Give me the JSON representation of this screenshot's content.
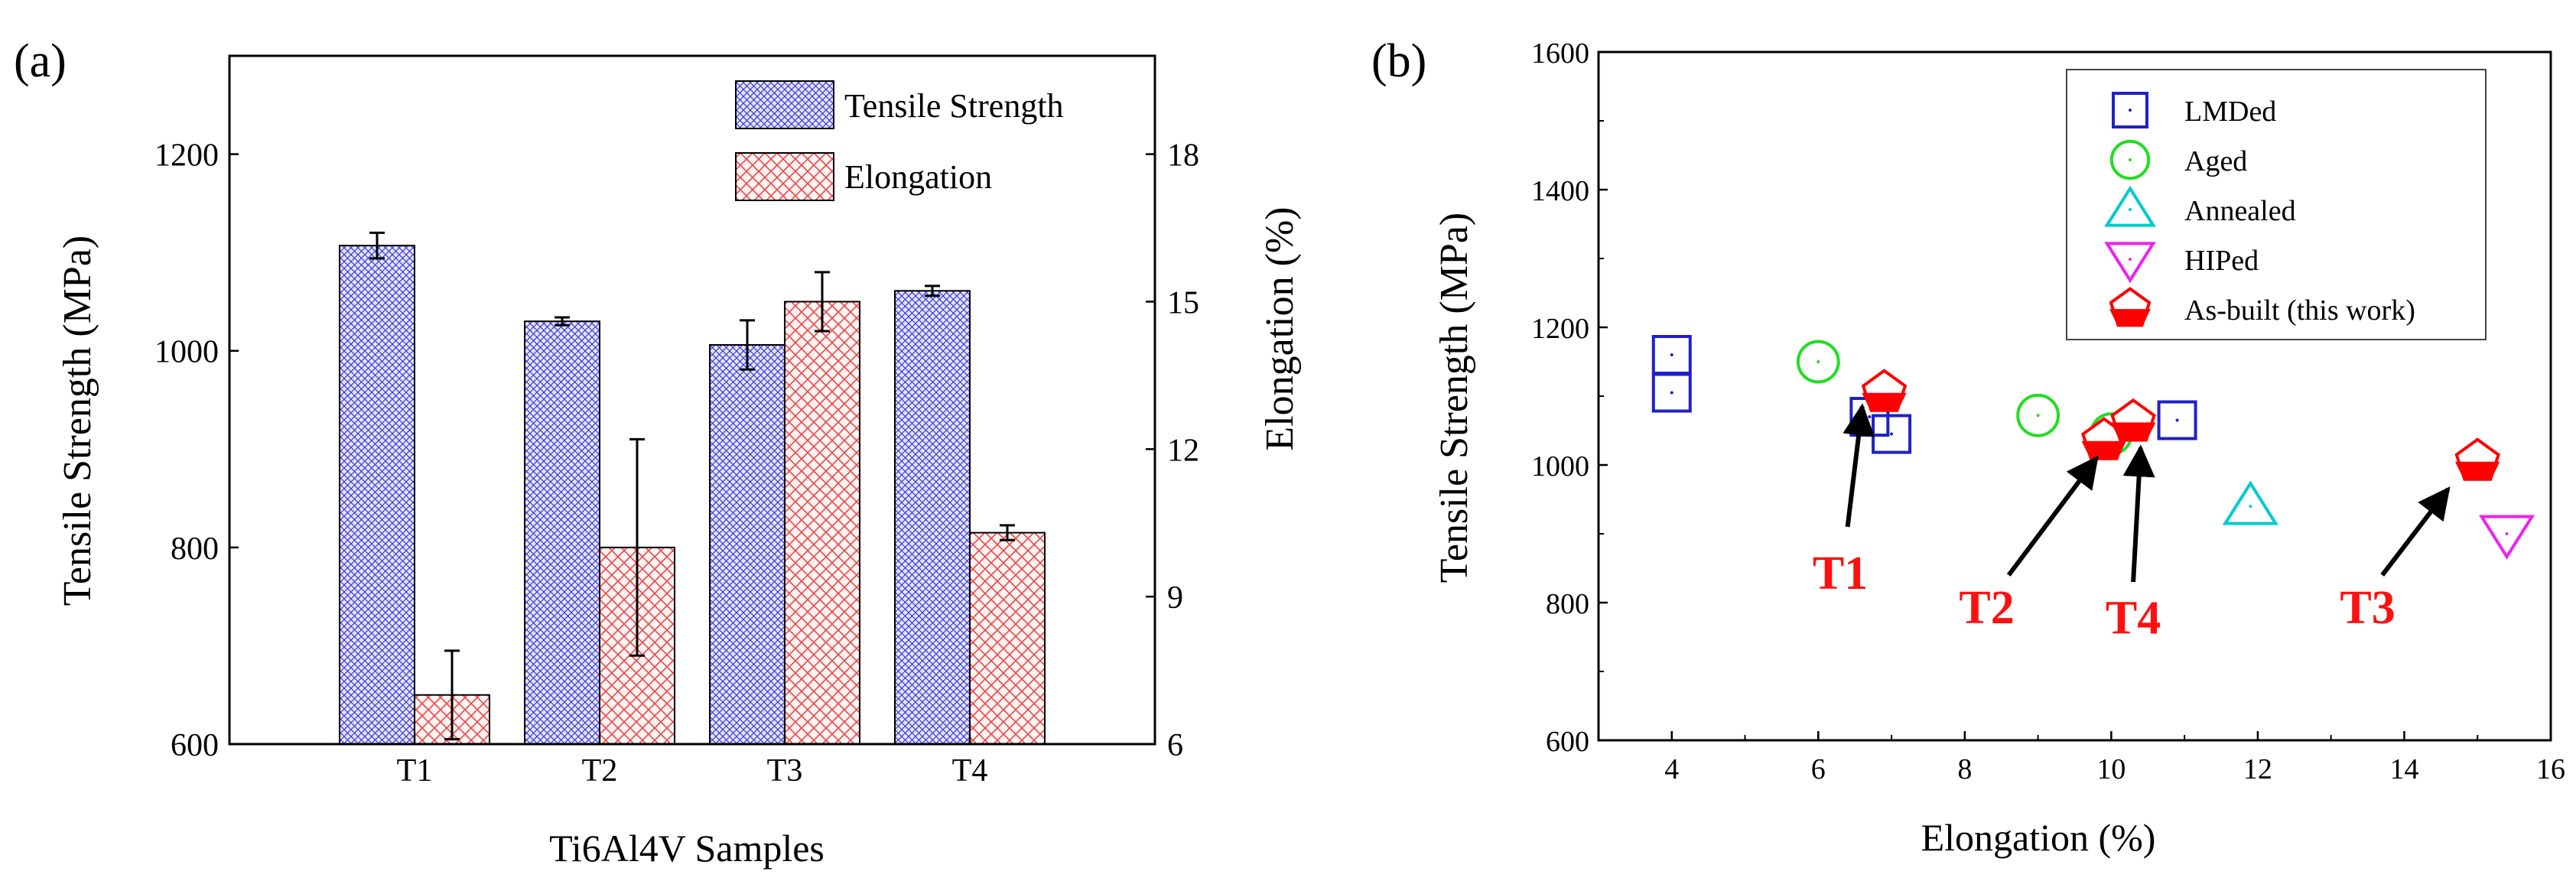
{
  "chart_data": [
    {
      "panel_label": "(a)",
      "type": "bar",
      "xlabel": "Ti6Al4V Samples",
      "ylabel": "Tensile Strength (MPa)",
      "y2label": "Elongation (%)",
      "categories": [
        "T1",
        "T2",
        "T3",
        "T4"
      ],
      "ylim": [
        600,
        1300
      ],
      "yticks": [
        600,
        800,
        1000,
        1200
      ],
      "y2lim": [
        6,
        20
      ],
      "y2ticks": [
        6,
        9,
        12,
        15,
        18
      ],
      "legend_position": "top-right",
      "series": [
        {
          "name": "Tensile Strength",
          "axis": "left",
          "color": "#2b2bd0",
          "fill": "#d8d8ff",
          "values": [
            1107,
            1030,
            1006,
            1061
          ],
          "errors": [
            13,
            4,
            25,
            5
          ]
        },
        {
          "name": "Elongation",
          "axis": "right",
          "color": "#e03030",
          "fill": "#ffdede",
          "values": [
            7.0,
            10.0,
            15.0,
            10.3
          ],
          "errors": [
            0.9,
            2.2,
            0.6,
            0.15
          ]
        }
      ]
    },
    {
      "panel_label": "(b)",
      "type": "scatter",
      "xlabel": "Elongation (%)",
      "ylabel": "Tensile Strength (MPa)",
      "xlim": [
        3,
        16
      ],
      "xticks": [
        4,
        6,
        8,
        10,
        12,
        14,
        16
      ],
      "ylim": [
        600,
        1600
      ],
      "yticks": [
        600,
        800,
        1000,
        1200,
        1400,
        1600
      ],
      "legend_position": "top-right",
      "series": [
        {
          "name": "LMDed",
          "marker": "square",
          "color": "#2020c8",
          "points": [
            [
              4,
              1160
            ],
            [
              4,
              1105
            ],
            [
              6.7,
              1070
            ],
            [
              7.0,
              1045
            ],
            [
              10.9,
              1065
            ]
          ]
        },
        {
          "name": "Aged",
          "marker": "circle",
          "color": "#22dd22",
          "points": [
            [
              6,
              1150
            ],
            [
              9,
              1072
            ],
            [
              10,
              1045
            ]
          ]
        },
        {
          "name": "Annealed",
          "marker": "triangle-up",
          "color": "#00cccc",
          "points": [
            [
              11.9,
              940
            ]
          ]
        },
        {
          "name": "HIPed",
          "marker": "triangle-down",
          "color": "#ee22ee",
          "points": [
            [
              15.4,
              900
            ]
          ]
        },
        {
          "name": "As-built (this work)",
          "marker": "pentagon",
          "color": "#ff0000",
          "points": [
            [
              6.9,
              1105
            ],
            [
              9.9,
              1035
            ],
            [
              10.3,
              1062
            ],
            [
              15.0,
              1005
            ]
          ]
        }
      ],
      "annotations": [
        {
          "text": "T1",
          "label_at": [
            6.3,
            820
          ],
          "arrow_from": [
            6.4,
            910
          ],
          "arrow_to": [
            6.6,
            1085
          ]
        },
        {
          "text": "T2",
          "label_at": [
            8.3,
            770
          ],
          "arrow_from": [
            8.6,
            840
          ],
          "arrow_to": [
            9.8,
            1010
          ]
        },
        {
          "text": "T4",
          "label_at": [
            10.3,
            755
          ],
          "arrow_from": [
            10.3,
            830
          ],
          "arrow_to": [
            10.4,
            1025
          ]
        },
        {
          "text": "T3",
          "label_at": [
            13.5,
            770
          ],
          "arrow_from": [
            13.7,
            840
          ],
          "arrow_to": [
            14.6,
            965
          ]
        }
      ]
    }
  ]
}
